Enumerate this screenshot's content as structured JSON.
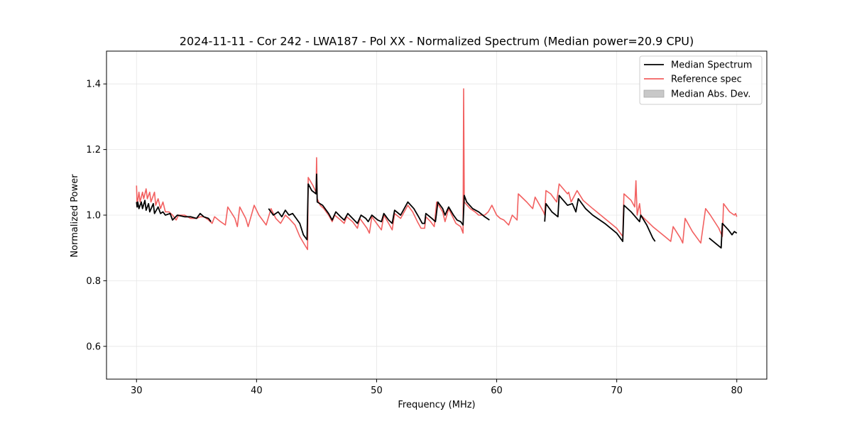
{
  "chart_data": {
    "type": "line",
    "title": "2024-11-11 - Cor 242 - LWA187 - Pol XX - Normalized Spectrum (Median power=20.9 CPU)",
    "xlabel": "Frequency (MHz)",
    "ylabel": "Normalized Power",
    "xlim": [
      27.5,
      82.5
    ],
    "ylim": [
      0.5,
      1.5
    ],
    "xticks": [
      30,
      40,
      50,
      60,
      70,
      80
    ],
    "yticks": [
      0.6,
      0.8,
      1.0,
      1.2,
      1.4
    ],
    "ytick_labels": [
      "0.6",
      "0.8",
      "1.0",
      "1.2",
      "1.4"
    ],
    "grid": true,
    "legend_position": "top-right",
    "legend": [
      {
        "label": "Median Spectrum",
        "kind": "line",
        "color": "#000000"
      },
      {
        "label": "Reference spec",
        "kind": "line",
        "color": "#f26060"
      },
      {
        "label": "Median Abs. Dev.",
        "kind": "band",
        "color": "#c8c8c8"
      }
    ],
    "series": [
      {
        "name": "Reference spec",
        "color": "#f26060",
        "segments": [
          [
            [
              30,
              1.09
            ],
            [
              30.05,
              1.03
            ],
            [
              30.2,
              1.07
            ],
            [
              30.3,
              1.04
            ],
            [
              30.5,
              1.07
            ],
            [
              30.6,
              1.05
            ],
            [
              30.8,
              1.08
            ],
            [
              30.9,
              1.05
            ],
            [
              31.1,
              1.07
            ],
            [
              31.2,
              1.04
            ],
            [
              31.5,
              1.07
            ],
            [
              31.6,
              1.03
            ],
            [
              31.8,
              1.05
            ],
            [
              32,
              1.02
            ],
            [
              32.2,
              1.04
            ],
            [
              32.4,
              1.01
            ],
            [
              32.7,
              1.01
            ],
            [
              33,
              1.0
            ],
            [
              33.3,
              0.985
            ],
            [
              33.5,
              1.0
            ],
            [
              34,
              1.0
            ],
            [
              34.5,
              0.99
            ],
            [
              35,
              0.99
            ],
            [
              35.3,
              0.995
            ],
            [
              35.6,
              0.995
            ],
            [
              36,
              0.985
            ],
            [
              36.3,
              0.975
            ],
            [
              36.5,
              0.995
            ],
            [
              37,
              0.98
            ],
            [
              37.4,
              0.97
            ],
            [
              37.6,
              1.025
            ],
            [
              38.2,
              0.99
            ],
            [
              38.4,
              0.965
            ],
            [
              38.6,
              1.025
            ],
            [
              39.1,
              0.99
            ],
            [
              39.3,
              0.965
            ],
            [
              39.8,
              1.03
            ],
            [
              40.2,
              1.0
            ],
            [
              40.8,
              0.97
            ],
            [
              41.2,
              1.02
            ],
            [
              41.6,
              0.99
            ],
            [
              42,
              0.975
            ],
            [
              42.4,
              1.0
            ],
            [
              42.7,
              0.99
            ],
            [
              43.2,
              0.97
            ],
            [
              43.6,
              0.935
            ],
            [
              44,
              0.91
            ],
            [
              44.25,
              0.895
            ],
            [
              44.3,
              1.115
            ],
            [
              44.7,
              1.09
            ],
            [
              44.95,
              1.07
            ],
            [
              45,
              1.175
            ],
            [
              45.05,
              1.05
            ],
            [
              45.3,
              1.03
            ],
            [
              45.6,
              1.02
            ],
            [
              46,
              1.0
            ],
            [
              46.3,
              0.98
            ],
            [
              46.5,
              1.0
            ],
            [
              47,
              0.985
            ],
            [
              47.3,
              0.975
            ],
            [
              47.5,
              0.995
            ],
            [
              48,
              0.98
            ],
            [
              48.4,
              0.96
            ],
            [
              48.6,
              0.99
            ],
            [
              49.2,
              0.96
            ],
            [
              49.4,
              0.945
            ],
            [
              49.6,
              0.995
            ],
            [
              50.1,
              0.97
            ],
            [
              50.4,
              0.955
            ],
            [
              50.6,
              1.0
            ],
            [
              51,
              0.975
            ],
            [
              51.3,
              0.955
            ],
            [
              51.5,
              1.005
            ],
            [
              52,
              0.99
            ],
            [
              52.3,
              1.01
            ],
            [
              52.6,
              1.03
            ],
            [
              53,
              1.01
            ],
            [
              53.4,
              0.98
            ],
            [
              53.7,
              0.96
            ],
            [
              54,
              0.96
            ],
            [
              54.1,
              0.995
            ],
            [
              54.5,
              0.98
            ],
            [
              54.8,
              0.965
            ],
            [
              55,
              1.04
            ],
            [
              55.5,
              1.01
            ],
            [
              55.7,
              0.98
            ],
            [
              56,
              1.02
            ],
            [
              56.4,
              0.99
            ],
            [
              56.6,
              0.975
            ],
            [
              57,
              0.965
            ],
            [
              57.2,
              0.945
            ],
            [
              57.25,
              1.385
            ],
            [
              57.3,
              1.04
            ],
            [
              57.8,
              1.02
            ],
            [
              58.2,
              1.01
            ],
            [
              58.5,
              1.0
            ],
            [
              59,
              1.0
            ],
            [
              59.3,
              1.01
            ],
            [
              59.6,
              1.03
            ],
            [
              60,
              1.0
            ],
            [
              60.3,
              0.99
            ],
            [
              60.6,
              0.985
            ],
            [
              61,
              0.97
            ],
            [
              61.3,
              1.0
            ],
            [
              61.7,
              0.985
            ],
            [
              61.8,
              1.065
            ],
            [
              62.5,
              1.04
            ],
            [
              63,
              1.02
            ],
            [
              63.2,
              1.055
            ],
            [
              63.9,
              1.01
            ],
            [
              64,
              1.0
            ],
            [
              64.1,
              1.075
            ],
            [
              64.5,
              1.065
            ],
            [
              65,
              1.04
            ],
            [
              65.2,
              1.095
            ],
            [
              65.9,
              1.065
            ],
            [
              66,
              1.07
            ],
            [
              66.2,
              1.04
            ],
            [
              66.7,
              1.075
            ],
            [
              67.2,
              1.045
            ],
            [
              68,
              1.02
            ],
            [
              69,
              0.99
            ],
            [
              70,
              0.96
            ],
            [
              70.5,
              0.935
            ],
            [
              70.6,
              1.065
            ],
            [
              71.2,
              1.045
            ],
            [
              71.5,
              1.025
            ],
            [
              71.6,
              1.105
            ],
            [
              71.7,
              1.0
            ],
            [
              71.9,
              1.035
            ],
            [
              72,
              1.0
            ],
            [
              73,
              0.965
            ],
            [
              74,
              0.935
            ],
            [
              74.5,
              0.92
            ],
            [
              74.7,
              0.965
            ],
            [
              75.3,
              0.93
            ],
            [
              75.5,
              0.915
            ],
            [
              75.7,
              0.99
            ],
            [
              76.3,
              0.95
            ],
            [
              76.7,
              0.93
            ],
            [
              77,
              0.915
            ],
            [
              77.4,
              1.02
            ],
            [
              77.8,
              1.0
            ],
            [
              78.5,
              0.96
            ],
            [
              78.8,
              0.935
            ],
            [
              78.9,
              1.035
            ],
            [
              79.4,
              1.01
            ],
            [
              79.8,
              1.0
            ],
            [
              79.9,
              1.005
            ],
            [
              80,
              0.995
            ]
          ]
        ]
      },
      {
        "name": "Median Spectrum",
        "color": "#000000",
        "segments": [
          [
            [
              30,
              1.04
            ],
            [
              30.05,
              1.025
            ],
            [
              30.1,
              1.04
            ],
            [
              30.2,
              1.02
            ],
            [
              30.4,
              1.04
            ],
            [
              30.5,
              1.02
            ],
            [
              30.7,
              1.045
            ],
            [
              30.8,
              1.015
            ],
            [
              31,
              1.035
            ],
            [
              31.1,
              1.01
            ],
            [
              31.4,
              1.035
            ],
            [
              31.5,
              1.005
            ],
            [
              31.8,
              1.025
            ],
            [
              32,
              1.005
            ],
            [
              32.2,
              1.01
            ],
            [
              32.4,
              1.0
            ],
            [
              32.8,
              1.005
            ],
            [
              33,
              0.985
            ],
            [
              33.4,
              1.0
            ],
            [
              34,
              0.995
            ],
            [
              34.5,
              0.995
            ],
            [
              35,
              0.99
            ],
            [
              35.3,
              1.005
            ],
            [
              35.6,
              0.995
            ],
            [
              36,
              0.99
            ],
            [
              36.2,
              0.98
            ]
          ],
          [
            [
              41,
              1.02
            ],
            [
              41.4,
              1.0
            ],
            [
              41.8,
              1.01
            ],
            [
              42.1,
              0.995
            ],
            [
              42.4,
              1.015
            ],
            [
              42.7,
              1.0
            ],
            [
              43,
              1.005
            ],
            [
              43.3,
              0.99
            ],
            [
              43.6,
              0.975
            ],
            [
              43.9,
              0.94
            ],
            [
              44.2,
              0.925
            ],
            [
              44.3,
              1.095
            ],
            [
              44.6,
              1.075
            ],
            [
              44.95,
              1.065
            ],
            [
              45,
              1.125
            ],
            [
              45.05,
              1.04
            ],
            [
              45.5,
              1.03
            ],
            [
              46,
              1.005
            ],
            [
              46.3,
              0.985
            ],
            [
              46.6,
              1.01
            ],
            [
              47,
              0.995
            ],
            [
              47.3,
              0.985
            ],
            [
              47.6,
              1.005
            ],
            [
              48,
              0.99
            ],
            [
              48.4,
              0.975
            ],
            [
              48.7,
              1.0
            ],
            [
              49.1,
              0.99
            ],
            [
              49.3,
              0.98
            ],
            [
              49.6,
              1.0
            ],
            [
              50.1,
              0.985
            ],
            [
              50.4,
              0.98
            ],
            [
              50.6,
              1.005
            ],
            [
              51,
              0.985
            ],
            [
              51.3,
              0.975
            ],
            [
              51.5,
              1.015
            ],
            [
              52,
              1.0
            ],
            [
              52.3,
              1.02
            ],
            [
              52.6,
              1.04
            ],
            [
              53.1,
              1.02
            ],
            [
              53.5,
              0.995
            ],
            [
              53.8,
              0.975
            ],
            [
              54,
              0.975
            ],
            [
              54.1,
              1.005
            ],
            [
              54.6,
              0.99
            ],
            [
              54.9,
              0.98
            ],
            [
              55.1,
              1.04
            ],
            [
              55.5,
              1.02
            ],
            [
              55.7,
              1.0
            ],
            [
              56,
              1.025
            ],
            [
              56.4,
              1.0
            ],
            [
              56.7,
              0.985
            ],
            [
              57,
              0.98
            ],
            [
              57.2,
              0.97
            ],
            [
              57.3,
              1.06
            ],
            [
              57.5,
              1.04
            ],
            [
              58,
              1.02
            ],
            [
              58.5,
              1.01
            ],
            [
              59,
              0.995
            ],
            [
              59.4,
              0.985
            ]
          ],
          [
            [
              64,
              0.98
            ],
            [
              64.1,
              1.035
            ],
            [
              64.6,
              1.01
            ],
            [
              65.1,
              0.995
            ],
            [
              65.2,
              1.06
            ],
            [
              65.9,
              1.03
            ],
            [
              66.3,
              1.035
            ],
            [
              66.6,
              1.01
            ],
            [
              66.8,
              1.05
            ],
            [
              67.4,
              1.02
            ],
            [
              68,
              1.0
            ],
            [
              69,
              0.975
            ],
            [
              70,
              0.945
            ],
            [
              70.5,
              0.92
            ],
            [
              70.6,
              1.03
            ],
            [
              71.2,
              1.01
            ],
            [
              71.9,
              0.98
            ],
            [
              72,
              1.0
            ],
            [
              72.5,
              0.97
            ],
            [
              73,
              0.93
            ],
            [
              73.2,
              0.92
            ]
          ],
          [
            [
              77.7,
              0.93
            ],
            [
              78.2,
              0.915
            ],
            [
              78.7,
              0.9
            ],
            [
              78.8,
              0.975
            ],
            [
              79.3,
              0.955
            ],
            [
              79.6,
              0.94
            ],
            [
              79.8,
              0.95
            ],
            [
              80,
              0.945
            ]
          ]
        ]
      }
    ]
  }
}
